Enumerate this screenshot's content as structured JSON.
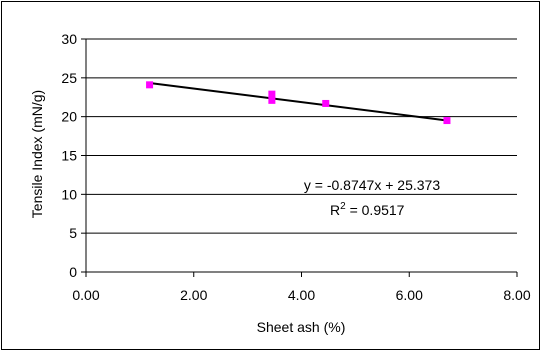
{
  "chart_data": {
    "type": "scatter",
    "xlabel": "Sheet ash (%)",
    "ylabel": "Tensile Index (mN/g)",
    "xlim": [
      0,
      8
    ],
    "ylim": [
      0,
      30
    ],
    "x_ticks": [
      "0.00",
      "2.00",
      "4.00",
      "6.00",
      "8.00"
    ],
    "x_tick_values": [
      0,
      2,
      4,
      6,
      8
    ],
    "y_ticks": [
      "0",
      "5",
      "10",
      "15",
      "20",
      "25",
      "30"
    ],
    "y_tick_values": [
      0,
      5,
      10,
      15,
      20,
      25,
      30
    ],
    "grid": "horizontal",
    "legend": "none",
    "points": [
      {
        "x": 1.18,
        "y": 24.1
      },
      {
        "x": 3.45,
        "y": 22.9
      },
      {
        "x": 3.45,
        "y": 22.1
      },
      {
        "x": 4.45,
        "y": 21.7
      },
      {
        "x": 6.7,
        "y": 19.5
      }
    ],
    "trendline": {
      "slope": -0.8747,
      "intercept": 25.373,
      "x_range": [
        1.18,
        6.7
      ]
    },
    "annotation": {
      "equation": "y = -0.8747x + 25.373",
      "r2_prefix": "R",
      "r2_sup": "2",
      "r2_suffix": " = 0.9517"
    },
    "colors": {
      "marker": "#ff00ff",
      "trendline": "#000000",
      "grid": "#000000"
    }
  }
}
